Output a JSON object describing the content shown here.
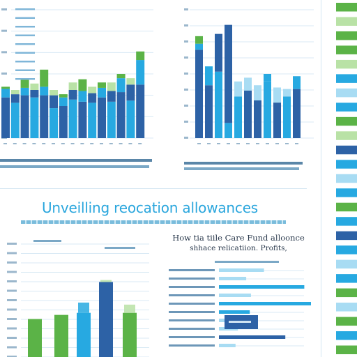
{
  "headline": "Unveilling reocation allowances",
  "subtitle_line1": "How tia tiile Care Fund alloonce",
  "subtitle_line2": "shhace relicatiion. Profits,",
  "colors": {
    "navy": "#2d62a6",
    "sky": "#27a9e1",
    "green": "#5bb347",
    "lightblue": "#a8dcf3",
    "lightgreen": "#b9e2a6",
    "grid": "#d8e9f4",
    "title_blue": "#2aa6dd",
    "text_dark": "#2b3a4d"
  },
  "chart_data": [
    {
      "type": "bar",
      "title": "",
      "categories": [
        "",
        "",
        "",
        "",
        "",
        "",
        "",
        "",
        "",
        "",
        "",
        "",
        "",
        "",
        ""
      ],
      "series": [
        {
          "values": [
            38,
            33,
            40,
            38,
            40,
            28,
            30,
            36,
            34,
            33,
            38,
            34,
            43,
            35,
            50
          ]
        },
        {
          "values": [
            8,
            8,
            7,
            7,
            8,
            12,
            8,
            9,
            10,
            9,
            9,
            10,
            13,
            15,
            23
          ]
        },
        {
          "values": [
            2,
            4,
            8,
            6,
            16,
            5,
            3,
            7,
            11,
            6,
            5,
            8,
            4,
            6,
            8
          ]
        }
      ]
    },
    {
      "type": "bar",
      "title": "",
      "categories": [
        "",
        "",
        "",
        "",
        "",
        "",
        "",
        "",
        "",
        "",
        ""
      ],
      "series": [
        {
          "values": [
            117,
            70,
            88,
            20,
            55,
            63,
            50,
            75,
            47,
            55,
            65
          ]
        },
        {
          "values": [
            8,
            25,
            50,
            130,
            20,
            17,
            20,
            10,
            20,
            10,
            17
          ]
        },
        {
          "values": [
            10,
            0,
            0,
            0,
            0,
            0,
            0,
            0,
            0,
            0,
            0
          ]
        }
      ]
    },
    {
      "type": "bar",
      "title": "",
      "categories": [
        "",
        "",
        "",
        "",
        ""
      ],
      "series": [
        {
          "values": [
            37,
            41,
            43,
            73,
            43
          ],
          "color_keys": [
            "green",
            "green",
            "sky",
            "navy",
            "green"
          ]
        },
        {
          "values": [
            0,
            0,
            10,
            2,
            8
          ]
        }
      ]
    },
    {
      "type": "bar",
      "title": "",
      "categories": [
        "",
        "",
        "",
        "",
        "",
        "",
        "",
        "",
        "",
        ""
      ],
      "values": [
        38,
        23,
        72,
        27,
        85,
        26,
        32,
        16,
        56,
        14
      ],
      "color_keys": [
        "lightblue",
        "lightblue",
        "sky",
        "lightblue",
        "sky",
        "sky",
        "lightblue",
        "lightblue",
        "navy",
        "lightblue"
      ]
    }
  ],
  "stripe_pattern": [
    "green",
    "lightgreen",
    "green",
    "green",
    "lightgreen",
    "sky",
    "lightblue",
    "sky",
    "green",
    "lightgreen",
    "navy",
    "sky",
    "lightblue",
    "sky",
    "green",
    "sky",
    "navy",
    "sky",
    "lightblue",
    "sky",
    "green",
    "lightblue",
    "green",
    "sky",
    "green"
  ]
}
